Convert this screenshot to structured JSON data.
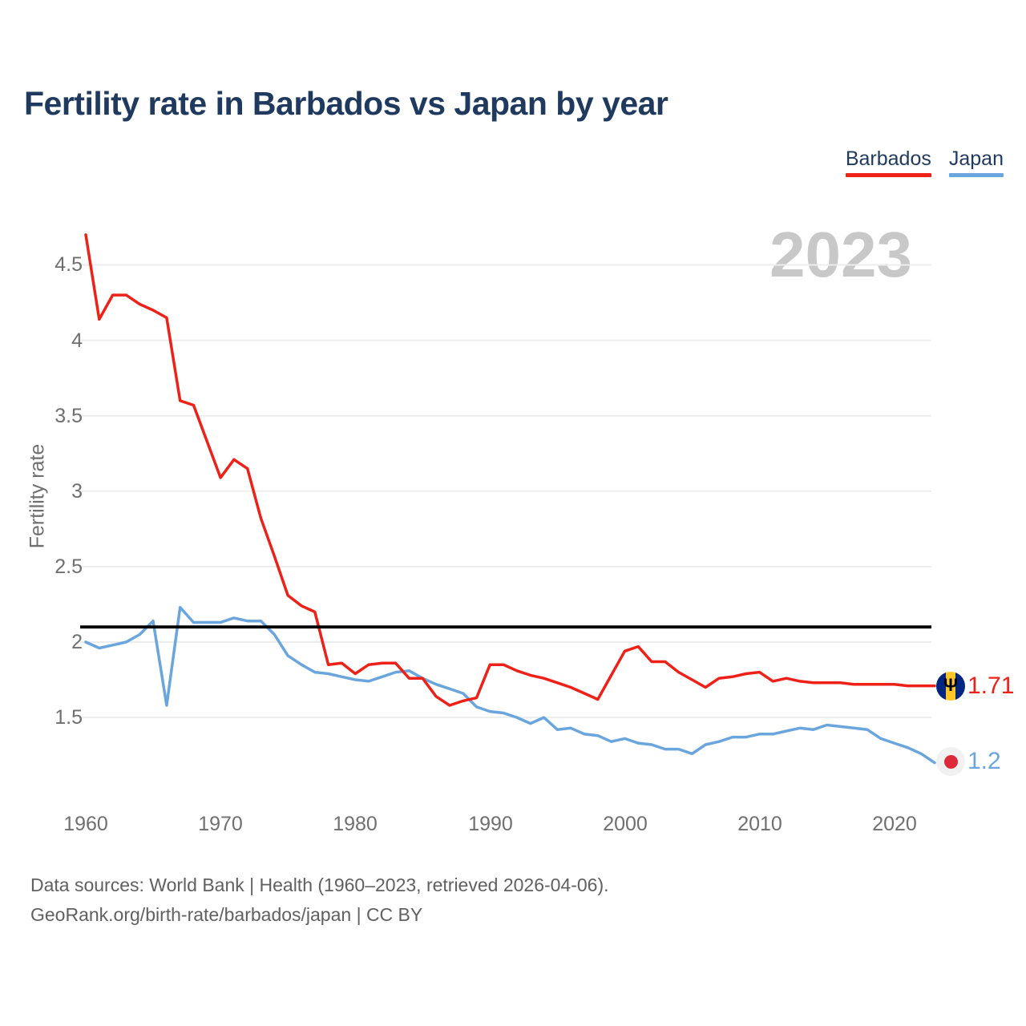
{
  "title": "Fertility rate in Barbados vs Japan by year",
  "legend": {
    "items": [
      {
        "label": "Barbados",
        "color": "#ee2119"
      },
      {
        "label": "Japan",
        "color": "#6aa5dd"
      }
    ]
  },
  "watermark": "2023",
  "chart_data": {
    "type": "line",
    "title": "Fertility rate in Barbados vs Japan by year",
    "xlabel": "",
    "ylabel": "Fertility rate",
    "xlim": [
      1960,
      2023
    ],
    "ylim": [
      1.15,
      4.75
    ],
    "xticks": [
      1960,
      1970,
      1980,
      1990,
      2000,
      2010,
      2020
    ],
    "yticks": [
      4.5,
      4,
      3.5,
      3,
      2.5,
      2,
      1.5
    ],
    "grid": true,
    "legend_position": "top-right",
    "reference_line": 2.1,
    "x": [
      1960,
      1961,
      1962,
      1963,
      1964,
      1965,
      1966,
      1967,
      1968,
      1969,
      1970,
      1971,
      1972,
      1973,
      1974,
      1975,
      1976,
      1977,
      1978,
      1979,
      1980,
      1981,
      1982,
      1983,
      1984,
      1985,
      1986,
      1987,
      1988,
      1989,
      1990,
      1991,
      1992,
      1993,
      1994,
      1995,
      1996,
      1997,
      1998,
      1999,
      2000,
      2001,
      2002,
      2003,
      2004,
      2005,
      2006,
      2007,
      2008,
      2009,
      2010,
      2011,
      2012,
      2013,
      2014,
      2015,
      2016,
      2017,
      2018,
      2019,
      2020,
      2021,
      2022,
      2023
    ],
    "series": [
      {
        "name": "Barbados",
        "color": "#ee2119",
        "values": [
          4.7,
          4.14,
          4.3,
          4.3,
          4.24,
          4.2,
          4.15,
          3.6,
          3.57,
          3.33,
          3.09,
          3.21,
          3.15,
          2.82,
          2.57,
          2.31,
          2.24,
          2.2,
          1.85,
          1.86,
          1.79,
          1.85,
          1.86,
          1.86,
          1.76,
          1.76,
          1.64,
          1.58,
          1.61,
          1.63,
          1.85,
          1.85,
          1.81,
          1.78,
          1.76,
          1.73,
          1.7,
          1.66,
          1.62,
          1.78,
          1.94,
          1.97,
          1.87,
          1.87,
          1.8,
          1.75,
          1.7,
          1.76,
          1.77,
          1.79,
          1.8,
          1.74,
          1.76,
          1.74,
          1.73,
          1.73,
          1.73,
          1.72,
          1.72,
          1.72,
          1.72,
          1.71,
          1.71,
          1.71
        ]
      },
      {
        "name": "Japan",
        "color": "#6aa5dd",
        "values": [
          2.0,
          1.96,
          1.98,
          2.0,
          2.05,
          2.14,
          1.58,
          2.23,
          2.13,
          2.13,
          2.13,
          2.16,
          2.14,
          2.14,
          2.05,
          1.91,
          1.85,
          1.8,
          1.79,
          1.77,
          1.75,
          1.74,
          1.77,
          1.8,
          1.81,
          1.76,
          1.72,
          1.69,
          1.66,
          1.57,
          1.54,
          1.53,
          1.5,
          1.46,
          1.5,
          1.42,
          1.43,
          1.39,
          1.38,
          1.34,
          1.36,
          1.33,
          1.32,
          1.29,
          1.29,
          1.26,
          1.32,
          1.34,
          1.37,
          1.37,
          1.39,
          1.39,
          1.41,
          1.43,
          1.42,
          1.45,
          1.44,
          1.43,
          1.42,
          1.36,
          1.33,
          1.3,
          1.26,
          1.2
        ]
      }
    ],
    "end_labels": [
      {
        "series": "Barbados",
        "value": "1.71"
      },
      {
        "series": "Japan",
        "value": "1.2"
      }
    ]
  },
  "icons": {
    "barbados_flag": "barbados-flag-icon",
    "japan_flag": "japan-flag-icon"
  },
  "colors": {
    "grid": "#ededed",
    "reference_line": "#000000",
    "title": "#1f3a5e",
    "axis_text": "#6f6f6f",
    "watermark": "#c8c8c8",
    "footer": "#606060",
    "barbados_flag_blue": "#00267f",
    "barbados_flag_yellow": "#ffc726",
    "japan_flag_red": "#dd2a3b"
  },
  "footer": {
    "line1": "Data sources: World Bank | Health (1960–2023, retrieved 2026-04-06).",
    "line2": "GeoRank.org/birth-rate/barbados/japan | CC BY"
  }
}
